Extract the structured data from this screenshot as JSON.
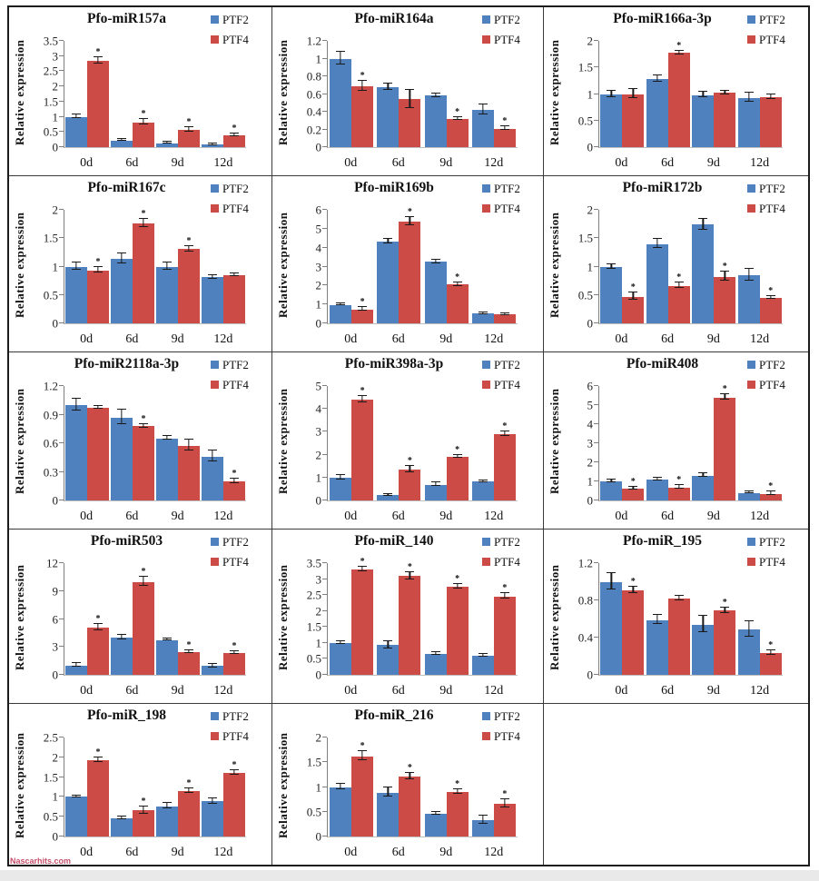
{
  "page": {
    "watermark": "Nascarhits.com"
  },
  "colors": {
    "ptf2": "#4e81bd",
    "ptf4": "#cc4b47",
    "axis": "#7f7f7f",
    "error_bar": "#1a1a1a"
  },
  "chart_data": {
    "type": "bar",
    "categories": [
      "0d",
      "6d",
      "9d",
      "12d"
    ],
    "ylabel": "Relative expression",
    "legend": [
      "PTF2",
      "PTF4"
    ],
    "legend_position": "top-right",
    "grid": false,
    "charts": [
      {
        "title": "Pfo-miR157a",
        "ylim": [
          0,
          3.5
        ],
        "yticks": [
          0,
          0.5,
          1,
          1.5,
          2,
          2.5,
          3,
          3.5
        ],
        "series": [
          {
            "name": "PTF2",
            "values": [
              1.0,
              0.22,
              0.13,
              0.08
            ],
            "errors": [
              0.05,
              0.02,
              0.02,
              0.01
            ],
            "sig": [
              false,
              false,
              false,
              false
            ]
          },
          {
            "name": "PTF4",
            "values": [
              2.85,
              0.82,
              0.57,
              0.4
            ],
            "errors": [
              0.09,
              0.08,
              0.05,
              0.03
            ],
            "sig": [
              true,
              true,
              true,
              true
            ]
          }
        ]
      },
      {
        "title": "Pfo-miR164a",
        "ylim": [
          0,
          1.2
        ],
        "yticks": [
          0,
          0.2,
          0.4,
          0.6,
          0.8,
          1,
          1.2
        ],
        "series": [
          {
            "name": "PTF2",
            "values": [
              1.0,
              0.68,
              0.58,
              0.42
            ],
            "errors": [
              0.07,
              0.03,
              0.02,
              0.05
            ],
            "sig": [
              false,
              false,
              false,
              false
            ]
          },
          {
            "name": "PTF4",
            "values": [
              0.69,
              0.54,
              0.32,
              0.21
            ],
            "errors": [
              0.05,
              0.1,
              0.012,
              0.015
            ],
            "sig": [
              true,
              false,
              true,
              true
            ]
          }
        ]
      },
      {
        "title": "Pfo-miR166a-3p",
        "ylim": [
          0,
          2
        ],
        "yticks": [
          0,
          0.5,
          1,
          1.5,
          2
        ],
        "series": [
          {
            "name": "PTF2",
            "values": [
              0.99,
              1.28,
              0.98,
              0.93
            ],
            "errors": [
              0.05,
              0.05,
              0.04,
              0.08
            ],
            "sig": [
              false,
              false,
              false,
              false
            ]
          },
          {
            "name": "PTF4",
            "values": [
              1.0,
              1.77,
              1.02,
              0.94
            ],
            "errors": [
              0.08,
              0.03,
              0.02,
              0.04
            ],
            "sig": [
              false,
              true,
              false,
              false
            ]
          }
        ]
      },
      {
        "title": "Pfo-miR167c",
        "ylim": [
          0,
          2
        ],
        "yticks": [
          0,
          0.5,
          1,
          1.5,
          2
        ],
        "series": [
          {
            "name": "PTF2",
            "values": [
              1.0,
              1.13,
              1.0,
              0.81
            ],
            "errors": [
              0.06,
              0.08,
              0.05,
              0.02
            ],
            "sig": [
              false,
              false,
              false,
              false
            ]
          },
          {
            "name": "PTF4",
            "values": [
              0.93,
              1.76,
              1.31,
              0.85
            ],
            "errors": [
              0.04,
              0.07,
              0.04,
              0.02
            ],
            "sig": [
              true,
              true,
              true,
              false
            ]
          }
        ]
      },
      {
        "title": "Pfo-miR169b",
        "ylim": [
          0,
          6
        ],
        "yticks": [
          0,
          1,
          2,
          3,
          4,
          5,
          6
        ],
        "series": [
          {
            "name": "PTF2",
            "values": [
              0.97,
              4.33,
              3.25,
              0.51
            ],
            "errors": [
              0.03,
              0.1,
              0.07,
              0.04
            ],
            "sig": [
              false,
              false,
              false,
              false
            ]
          },
          {
            "name": "PTF4",
            "values": [
              0.74,
              5.38,
              2.05,
              0.47
            ],
            "errors": [
              0.07,
              0.18,
              0.07,
              0.03
            ],
            "sig": [
              true,
              true,
              true,
              false
            ]
          }
        ]
      },
      {
        "title": "Pfo-miR172b",
        "ylim": [
          0,
          2
        ],
        "yticks": [
          0,
          0.5,
          1,
          1.5,
          2
        ],
        "series": [
          {
            "name": "PTF2",
            "values": [
              0.99,
              1.4,
              1.74,
              0.85
            ],
            "errors": [
              0.03,
              0.07,
              0.09,
              0.1
            ],
            "sig": [
              false,
              false,
              false,
              false
            ]
          },
          {
            "name": "PTF4",
            "values": [
              0.47,
              0.66,
              0.82,
              0.45
            ],
            "errors": [
              0.06,
              0.04,
              0.07,
              0.02
            ],
            "sig": [
              true,
              true,
              true,
              true
            ]
          }
        ]
      },
      {
        "title": "Pfo-miR2118a-3p",
        "ylim": [
          0,
          1.2
        ],
        "yticks": [
          0,
          0.3,
          0.6,
          0.9,
          1.2
        ],
        "series": [
          {
            "name": "PTF2",
            "values": [
              1.0,
              0.87,
              0.65,
              0.46
            ],
            "errors": [
              0.06,
              0.07,
              0.015,
              0.05
            ],
            "sig": [
              false,
              false,
              false,
              false
            ]
          },
          {
            "name": "PTF4",
            "values": [
              0.97,
              0.78,
              0.575,
              0.2
            ],
            "errors": [
              0.01,
              0.015,
              0.055,
              0.015
            ],
            "sig": [
              false,
              true,
              false,
              true
            ]
          }
        ]
      },
      {
        "title": "Pfo-miR398a-3p",
        "ylim": [
          0,
          5
        ],
        "yticks": [
          0,
          1,
          2,
          3,
          4,
          5
        ],
        "series": [
          {
            "name": "PTF2",
            "values": [
              1.0,
              0.22,
              0.68,
              0.82
            ],
            "errors": [
              0.09,
              0.03,
              0.06,
              0.02
            ],
            "sig": [
              false,
              false,
              false,
              false
            ]
          },
          {
            "name": "PTF4",
            "values": [
              4.4,
              1.35,
              1.9,
              2.9
            ],
            "errors": [
              0.13,
              0.1,
              0.05,
              0.07
            ],
            "sig": [
              true,
              true,
              true,
              true
            ]
          }
        ]
      },
      {
        "title": "Pfo-miR408",
        "ylim": [
          0,
          6
        ],
        "yticks": [
          0,
          1,
          2,
          3,
          4,
          5,
          6
        ],
        "series": [
          {
            "name": "PTF2",
            "values": [
              1.0,
              1.1,
              1.3,
              0.4
            ],
            "errors": [
              0.07,
              0.06,
              0.06,
              0.03
            ],
            "sig": [
              false,
              false,
              false,
              false
            ]
          },
          {
            "name": "PTF4",
            "values": [
              0.6,
              0.68,
              5.4,
              0.35
            ],
            "errors": [
              0.05,
              0.07,
              0.12,
              0.06
            ],
            "sig": [
              true,
              true,
              true,
              true
            ]
          }
        ]
      },
      {
        "title": "Pfo-miR503",
        "ylim": [
          0,
          12
        ],
        "yticks": [
          0,
          3,
          6,
          9,
          12
        ],
        "series": [
          {
            "name": "PTF2",
            "values": [
              1.0,
              4.0,
              3.75,
              0.95
            ],
            "errors": [
              0.15,
              0.15,
              0.08,
              0.12
            ],
            "sig": [
              false,
              false,
              false,
              false
            ]
          },
          {
            "name": "PTF4",
            "values": [
              5.1,
              10.0,
              2.45,
              2.3
            ],
            "errors": [
              0.3,
              0.4,
              0.12,
              0.1
            ],
            "sig": [
              true,
              true,
              true,
              true
            ]
          }
        ]
      },
      {
        "title": "Pfo-miR_140",
        "ylim": [
          0,
          3.5
        ],
        "yticks": [
          0,
          0.5,
          1,
          1.5,
          2,
          2.5,
          3,
          3.5
        ],
        "series": [
          {
            "name": "PTF2",
            "values": [
              0.99,
              0.93,
              0.66,
              0.59
            ],
            "errors": [
              0.03,
              0.1,
              0.03,
              0.03
            ],
            "sig": [
              false,
              false,
              false,
              false
            ]
          },
          {
            "name": "PTF4",
            "values": [
              3.3,
              3.1,
              2.75,
              2.45
            ],
            "errors": [
              0.06,
              0.1,
              0.06,
              0.07
            ],
            "sig": [
              true,
              true,
              true,
              true
            ]
          }
        ]
      },
      {
        "title": "Pfo-miR_195",
        "ylim": [
          0,
          1.2
        ],
        "yticks": [
          0,
          0.4,
          0.8,
          1.2
        ],
        "series": [
          {
            "name": "PTF2",
            "values": [
              1.0,
              0.59,
              0.54,
              0.49
            ],
            "errors": [
              0.08,
              0.04,
              0.08,
              0.08
            ],
            "sig": [
              false,
              false,
              false,
              false
            ]
          },
          {
            "name": "PTF4",
            "values": [
              0.91,
              0.82,
              0.69,
              0.23
            ],
            "errors": [
              0.03,
              0.015,
              0.025,
              0.02
            ],
            "sig": [
              true,
              false,
              true,
              true
            ]
          }
        ]
      },
      {
        "title": "Pfo-miR_198",
        "ylim": [
          0,
          2.5
        ],
        "yticks": [
          0,
          0.5,
          1,
          1.5,
          2,
          2.5
        ],
        "series": [
          {
            "name": "PTF2",
            "values": [
              1.0,
              0.46,
              0.76,
              0.89
            ],
            "errors": [
              0.02,
              0.03,
              0.06,
              0.06
            ],
            "sig": [
              false,
              false,
              false,
              false
            ]
          },
          {
            "name": "PTF4",
            "values": [
              1.92,
              0.66,
              1.15,
              1.61
            ],
            "errors": [
              0.05,
              0.08,
              0.04,
              0.04
            ],
            "sig": [
              true,
              true,
              true,
              true
            ]
          }
        ]
      },
      {
        "title": "Pfo-miR_216",
        "ylim": [
          0,
          2
        ],
        "yticks": [
          0,
          0.5,
          1,
          1.5,
          2
        ],
        "series": [
          {
            "name": "PTF2",
            "values": [
              1.0,
              0.89,
              0.46,
              0.33
            ],
            "errors": [
              0.04,
              0.08,
              0.02,
              0.07
            ],
            "sig": [
              false,
              false,
              false,
              false
            ]
          },
          {
            "name": "PTF4",
            "values": [
              1.62,
              1.21,
              0.9,
              0.66
            ],
            "errors": [
              0.08,
              0.05,
              0.03,
              0.08
            ],
            "sig": [
              true,
              true,
              true,
              true
            ]
          }
        ]
      }
    ]
  }
}
